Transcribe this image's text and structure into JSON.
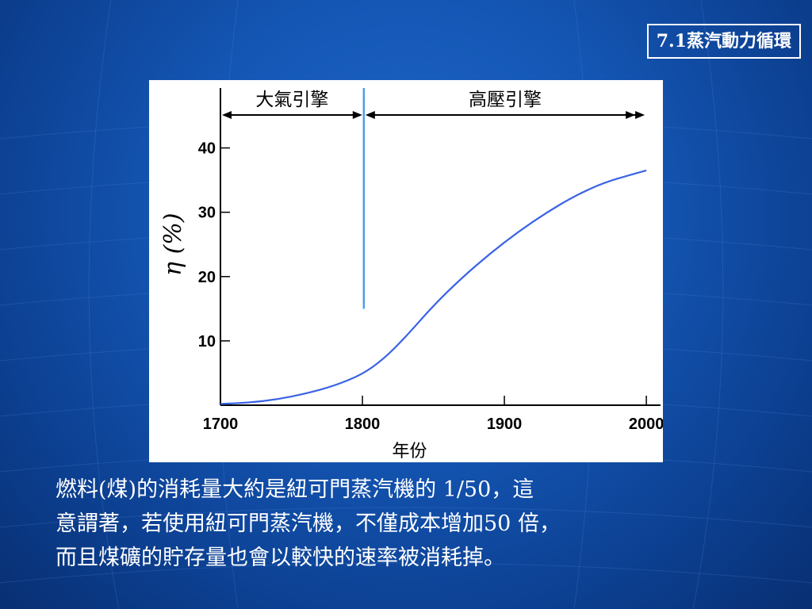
{
  "slide": {
    "section_title": "7.1蒸汽動力循環",
    "caption_lines": [
      "燃料(煤)的消耗量大約是紐可門蒸汽機的 1/50，這",
      "意謂著，若使用紐可門蒸汽機，不僅成本增加50 倍，",
      "而且煤礦的貯存量也會以較快的速率被消耗掉。"
    ]
  },
  "colors": {
    "curve": "#3a63e6",
    "divider": "#4a9ee8",
    "axis": "#000000",
    "chart_background": "#ffffff"
  },
  "chart_data": {
    "type": "line",
    "title": "",
    "xlabel": "年份",
    "ylabel": "η (%)",
    "xlim": [
      1700,
      2010
    ],
    "ylim": [
      0,
      45
    ],
    "x_ticks": [
      1700,
      1800,
      1900,
      2000
    ],
    "y_ticks": [
      10,
      20,
      30,
      40
    ],
    "grid": false,
    "series": [
      {
        "x": [
          1700,
          1720,
          1740,
          1760,
          1780,
          1800,
          1815,
          1830,
          1850,
          1870,
          1890,
          1910,
          1930,
          1950,
          1970,
          1990,
          2000
        ],
        "y": [
          0.2,
          0.4,
          0.9,
          1.8,
          3.0,
          4.8,
          7.2,
          10.5,
          15.5,
          19.8,
          23.6,
          27.0,
          30.0,
          32.6,
          34.6,
          35.9,
          36.5
        ]
      }
    ],
    "divider": {
      "x": 1801,
      "y_range": [
        15,
        50
      ]
    },
    "eras": [
      {
        "label": "大氣引擎",
        "from": 1700,
        "to": 1801
      },
      {
        "label": "高壓引擎",
        "from": 1801,
        "to": 2000
      }
    ]
  }
}
